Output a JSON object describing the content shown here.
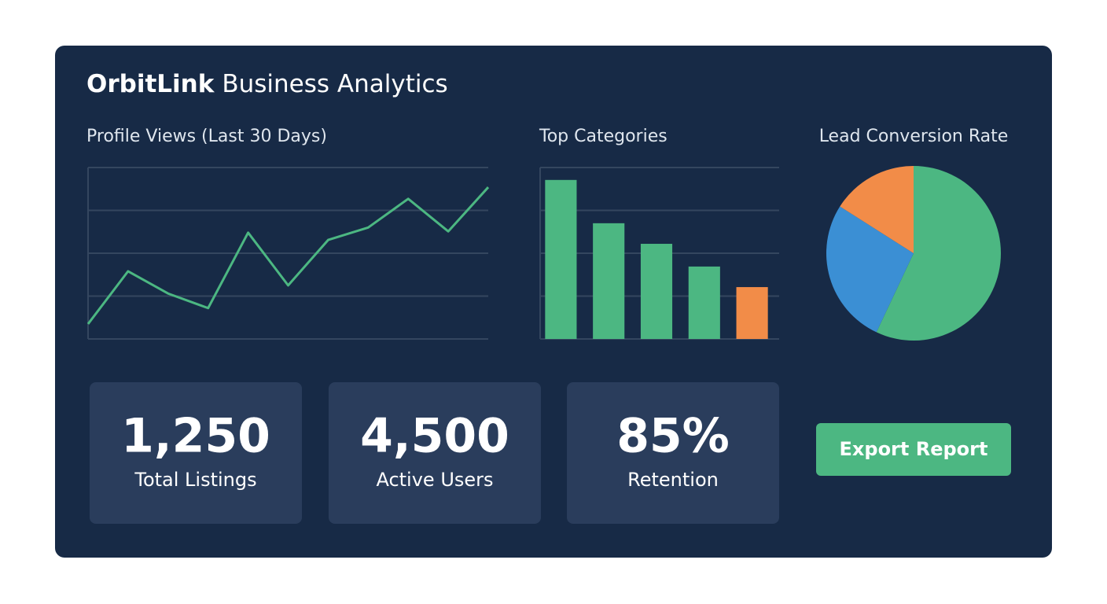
{
  "header": {
    "brand": "OrbitLink",
    "title": "Business Analytics"
  },
  "chart_data": [
    {
      "type": "line",
      "title": "Profile Views (Last 30 Days)",
      "categories": [
        null,
        null,
        null,
        null,
        null,
        null,
        null,
        null,
        null,
        null,
        null
      ],
      "values": [
        0.35,
        1.58,
        1.06,
        0.72,
        2.48,
        1.25,
        2.31,
        2.6,
        3.27,
        2.51,
        3.54
      ],
      "color": "#4cb782",
      "ylim": [
        0,
        4
      ],
      "yticks": [
        0,
        1,
        2,
        3,
        4
      ],
      "grid": true
    },
    {
      "type": "bar",
      "title": "Top Categories",
      "categories": [
        null,
        null,
        null,
        null,
        null
      ],
      "values": [
        3.71,
        2.7,
        2.22,
        1.69,
        1.21
      ],
      "colors": [
        "#4cb782",
        "#4cb782",
        "#4cb782",
        "#4cb782",
        "#f28c48"
      ],
      "ylim": [
        0,
        4
      ],
      "yticks": [
        0,
        1,
        2,
        3,
        4
      ],
      "grid": true
    },
    {
      "type": "pie",
      "title": "Lead Conversion Rate",
      "categories": [
        null,
        null,
        null
      ],
      "values": [
        57,
        27,
        16
      ],
      "colors": [
        "#4cb782",
        "#3b8fd4",
        "#f28c48"
      ]
    }
  ],
  "stats": [
    {
      "value": "1,250",
      "label": "Total Listings"
    },
    {
      "value": "4,500",
      "label": "Active Users"
    },
    {
      "value": "85%",
      "label": "Retention"
    }
  ],
  "button": {
    "label": "Export Report"
  }
}
